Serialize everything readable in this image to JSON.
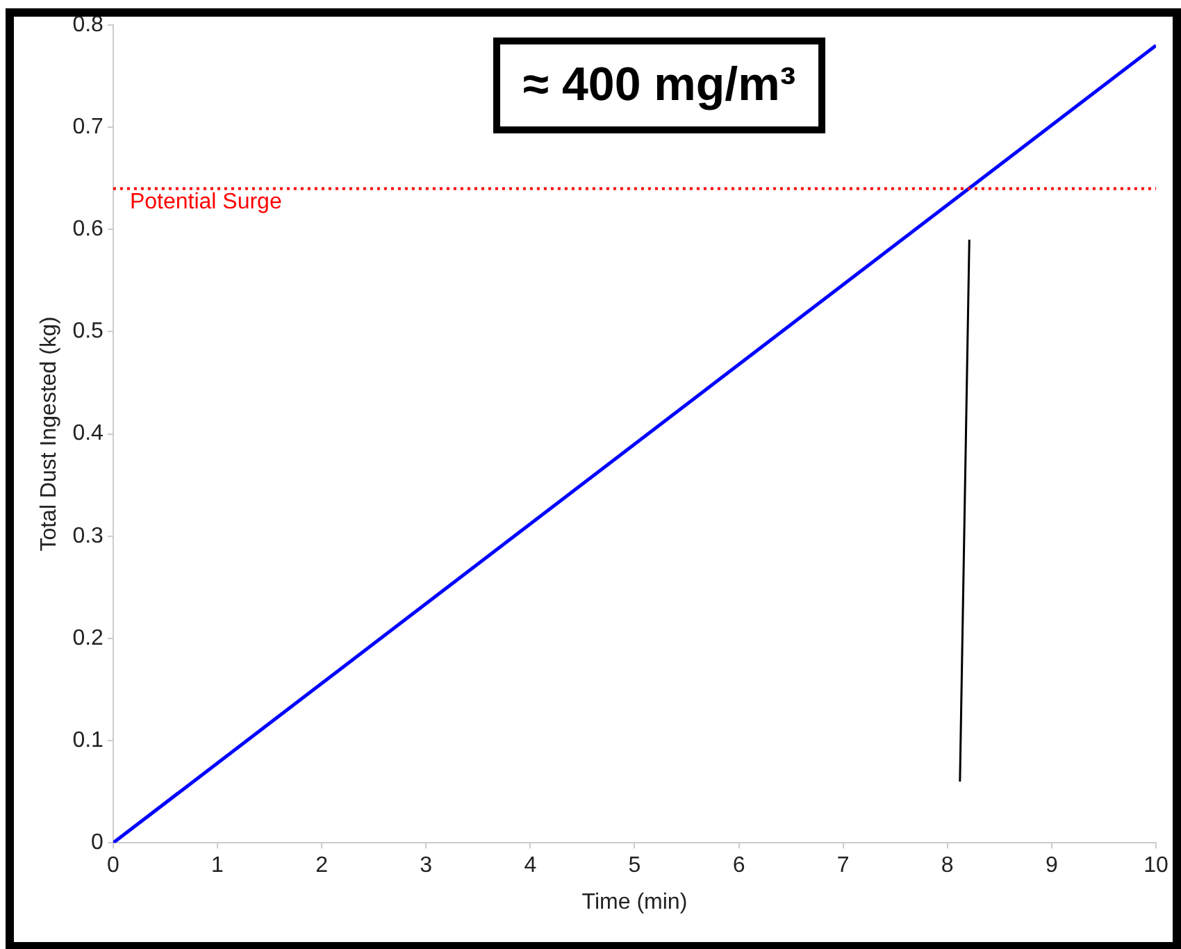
{
  "chart_data": {
    "type": "line",
    "xlabel": "Time (min)",
    "ylabel": "Total Dust Ingested (kg)",
    "x": [
      0,
      10
    ],
    "series": [
      {
        "color": "#0000ff",
        "values": [
          0,
          0.78
        ]
      },
      {
        "type": "line",
        "color": "#000000",
        "x": [
          8.12,
          8.21
        ],
        "values": [
          0.06,
          0.59
        ]
      }
    ],
    "xlim": [
      0,
      10
    ],
    "xticks": [
      0,
      1,
      2,
      3,
      4,
      5,
      6,
      7,
      8,
      9,
      10
    ],
    "ylim": [
      0,
      0.8
    ],
    "yticks": [
      0,
      0.1,
      0.2,
      0.3,
      0.4,
      0.5,
      0.6,
      0.7,
      0.8
    ],
    "ref_lines": [
      {
        "axis": "y",
        "value": 0.64,
        "label": "Potential Surge",
        "color": "#ff0000",
        "line_style": "dotted"
      }
    ],
    "annotations": [
      "≈ 400 mg/m³"
    ],
    "grid": false,
    "legend": false,
    "marker": "none",
    "line_style": "solid"
  }
}
